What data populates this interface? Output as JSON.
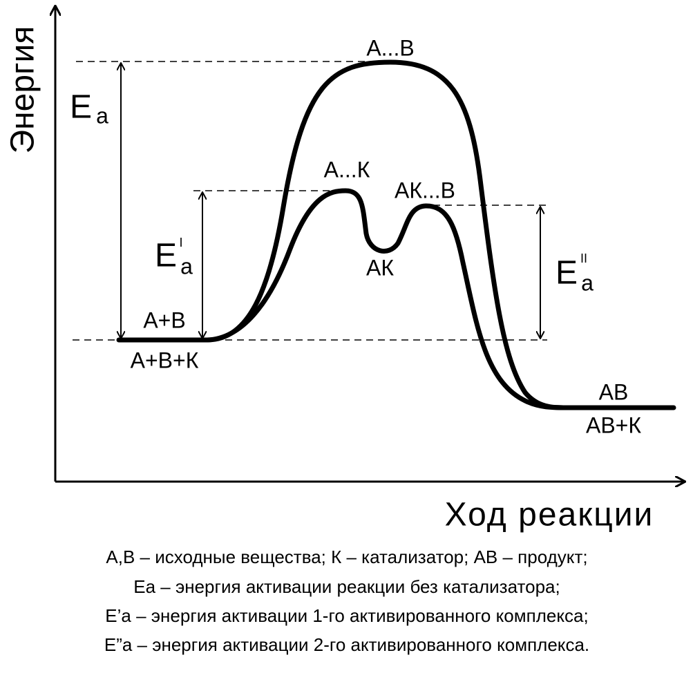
{
  "axes": {
    "y_label": "Энергия",
    "x_label": "Ход реакции"
  },
  "states": {
    "transition_uncatalyzed": "А...В",
    "complex_1": "А...К",
    "complex_2": "АК...В",
    "intermediate": "АК",
    "reactants": "А+В",
    "reactants_catalyzed": "А+В+К",
    "product": "АВ",
    "product_catalyzed": "АВ+К"
  },
  "energies": [
    {
      "symbol": "E",
      "subscript": "a"
    },
    {
      "symbol": "E",
      "superscript": "I",
      "subscript": "a"
    },
    {
      "symbol": "E",
      "superscript": "II",
      "subscript": "a"
    }
  ],
  "caption": [
    "А,В – исходные вещества; К – катализатор; АВ – продукт;",
    "Еа – энергия активации реакции без катализатора;",
    "Е’а – энергия активации 1-го активированного комплекса;",
    "Е”а – энергия активации 2-го активированного комплекса."
  ]
}
